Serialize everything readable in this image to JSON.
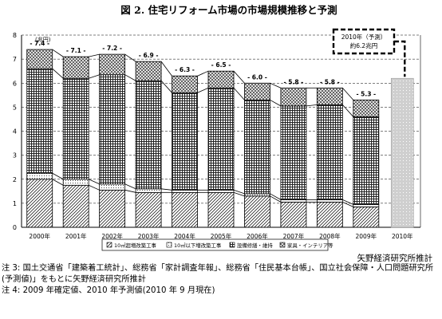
{
  "chart_data": {
    "type": "bar",
    "title": "図 2.  住宅リフォーム市場の市場規模推移と予測",
    "unit_label": "(兆円)",
    "ylim": [
      0,
      8
    ],
    "yticks": [
      "0",
      "1",
      "2",
      "3",
      "4",
      "5",
      "6",
      "7",
      "8"
    ],
    "categories": [
      "2000年",
      "2001年",
      "2002年",
      "2003年",
      "2004年",
      "2005年",
      "2006年",
      "2007年",
      "2008年",
      "2009年",
      "2010年"
    ],
    "totals_labels": [
      "7.4",
      "7.1",
      "7.2",
      "6.9",
      "6.3",
      "6.5",
      "6.0",
      "5.8",
      "5.8",
      "5.3",
      ""
    ],
    "series": [
      {
        "name": "10㎡超増改築工事",
        "values": [
          2.0,
          1.75,
          1.55,
          1.45,
          1.45,
          1.45,
          1.3,
          1.05,
          1.05,
          0.85,
          null
        ]
      },
      {
        "name": "10㎡以下増改築工事",
        "values": [
          0.25,
          0.25,
          0.25,
          0.15,
          0.1,
          0.1,
          0.1,
          0.1,
          0.1,
          0.1,
          null
        ]
      },
      {
        "name": "設備修繕・維持",
        "values": [
          4.35,
          4.2,
          4.55,
          4.5,
          4.05,
          4.25,
          3.9,
          3.9,
          3.95,
          3.65,
          null
        ]
      },
      {
        "name": "家具・インテリア等",
        "values": [
          0.8,
          0.9,
          0.85,
          0.8,
          0.7,
          0.7,
          0.7,
          0.75,
          0.7,
          0.7,
          null
        ]
      }
    ],
    "forecast": {
      "category": "2010年",
      "value": 6.2,
      "label_lines": [
        "2010年（予測）",
        "約6.2兆円"
      ]
    },
    "legend_position": "bottom",
    "grid": "dashed-horizontal",
    "colors": {
      "bar_outline": "#000000",
      "forecast_fill": "#d4d4d4"
    }
  },
  "source": "矢野経済研究所推計",
  "notes": [
    "注 3: 国土交通省「建築着工統計」、総務省「家計調査年報」、総務省「住民基本台帳」、国立社会保障・人口問題研究所",
    "(予測値)」をもとに矢野経済研究所推計",
    "注 4: 2009 年確定値、2010 年予測値(2010 年 9 月現在)"
  ]
}
